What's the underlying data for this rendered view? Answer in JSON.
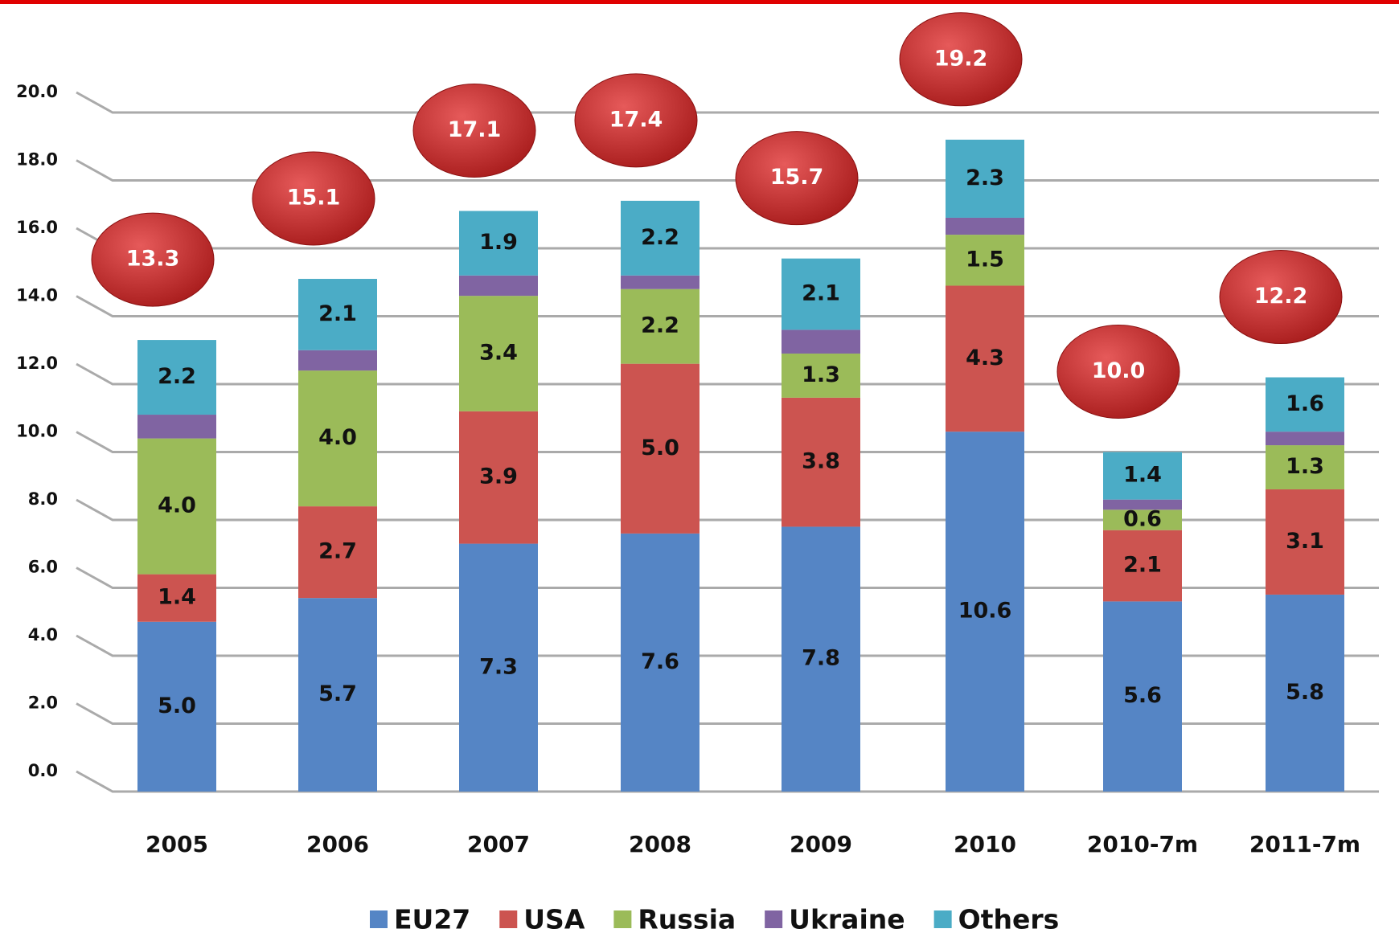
{
  "chart_data": {
    "type": "stacked_bar",
    "categories": [
      "2005",
      "2006",
      "2007",
      "2008",
      "2009",
      "2010",
      "2010-7m",
      "2011-7m"
    ],
    "series": [
      {
        "name": "EU27",
        "color": "#5585c5",
        "values": [
          5.0,
          5.7,
          7.3,
          7.6,
          7.8,
          10.6,
          5.6,
          5.8
        ],
        "value_labels": [
          "5.0",
          "5.7",
          "7.3",
          "7.6",
          "7.8",
          "10.6",
          "5.6",
          "5.8"
        ]
      },
      {
        "name": "USA",
        "color": "#cc5450",
        "values": [
          1.4,
          2.7,
          3.9,
          5.0,
          3.8,
          4.3,
          2.1,
          3.1
        ],
        "value_labels": [
          "1.4",
          "2.7",
          "3.9",
          "5.0",
          "3.8",
          "4.3",
          "2.1",
          "3.1"
        ]
      },
      {
        "name": "Russia",
        "color": "#9bbb59",
        "values": [
          4.0,
          4.0,
          3.4,
          2.2,
          1.3,
          1.5,
          0.6,
          1.3
        ],
        "value_labels": [
          "4.0",
          "4.0",
          "3.4",
          "2.2",
          "1.3",
          "1.5",
          "0.6",
          "1.3"
        ]
      },
      {
        "name": "Ukraine",
        "color": "#8064a2",
        "values": [
          0.7,
          0.6,
          0.6,
          0.4,
          0.7,
          0.5,
          0.3,
          0.4
        ]
      },
      {
        "name": "Others",
        "color": "#4bacc6",
        "values": [
          2.2,
          2.1,
          1.9,
          2.2,
          2.1,
          2.3,
          1.4,
          1.6
        ],
        "value_labels": [
          "2.2",
          "2.1",
          "1.9",
          "2.2",
          "2.1",
          "2.3",
          "1.4",
          "1.6"
        ]
      }
    ],
    "totals": {
      "color": "#c62828",
      "values": [
        13.3,
        15.1,
        17.1,
        17.4,
        15.7,
        19.2,
        10.0,
        12.2
      ],
      "labels": [
        "13.3",
        "15.1",
        "17.1",
        "17.4",
        "15.7",
        "19.2",
        "10.0",
        "12.2"
      ]
    },
    "ylim": [
      0,
      20
    ],
    "yticks": [
      {
        "value": 0,
        "label": "0.0"
      },
      {
        "value": 2,
        "label": "2.0"
      },
      {
        "value": 4,
        "label": "4.0"
      },
      {
        "value": 6,
        "label": "6.0"
      },
      {
        "value": 8,
        "label": "8.0"
      },
      {
        "value": 10,
        "label": "10.0"
      },
      {
        "value": 12,
        "label": "12.0"
      },
      {
        "value": 14,
        "label": "14.0"
      },
      {
        "value": 16,
        "label": "16.0"
      },
      {
        "value": 18,
        "label": "18.0"
      },
      {
        "value": 20,
        "label": "20.0"
      }
    ],
    "grid": true,
    "legend": "bottom"
  }
}
